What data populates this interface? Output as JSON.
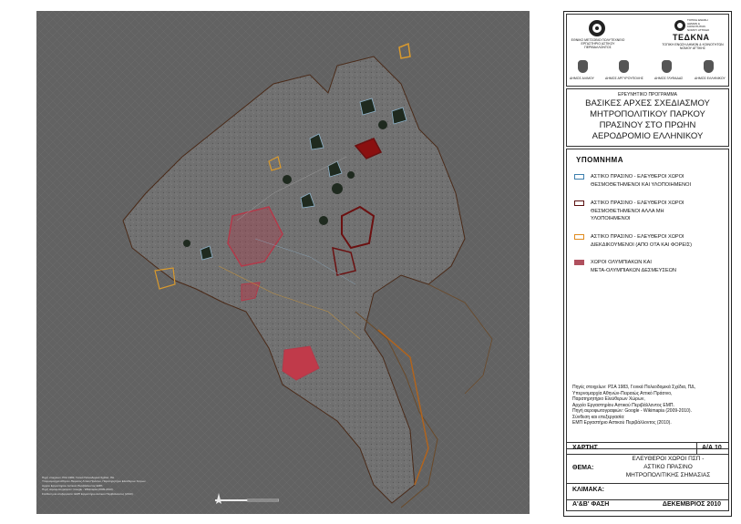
{
  "map": {
    "credits": [
      "Πηγή στοιχείων: ΡΣΑ 1983, Γενικά Πολεοδομικά Σχέδια, ΠΔ.",
      "Υπερνομαρχία Αθηνών-Πειραιώς Αττικό Πράσινο, Παρατηρητήριο Ελεύθερων Χώρων.",
      "Αρχείο Εργαστηρίου Αστικού Περιβάλλοντος ΕΜΠ.",
      "Πηγή αεροφωτογραφιών: Google - Wikimapia (2009-2010).",
      "Σύνθεση και επεξεργασία: ΕΜΠ Εργαστήριο Αστικού Περιβάλλοντος (2010)."
    ],
    "colors": {
      "background": "#5b5b5b",
      "boundary": "#4a2a18",
      "existing": "#8fb4cc",
      "planned": "#6b1010",
      "claimed": "#d99a2e",
      "olympic": "#b33a4a",
      "vegetation": "#1f2a1f"
    }
  },
  "header": {
    "org_left_line1": "ΕΘΝΙΚΟ ΜΕΤΣΟΒΙΟ ΠΟΛΥΤΕΧΝΕΙΟ",
    "org_left_line2": "ΕΡΓΑΣΤΗΡΙΟ ΑΣΤΙΚΟΥ ΠΕΡΙΒΑΛΛΟΝΤΟΣ",
    "org_right_brand": "ΤΕΔΚΝΑ",
    "org_right_lines": [
      "ΤΟΠΙΚΗ ΕΝΩΣΗ",
      "ΔΗΜΩΝ &",
      "ΚΟΙΝΟΤΗΤΩΝ",
      "ΝΟΜΟΥ ΑΤΤΙΚΗΣ"
    ],
    "org_right_caption": "ΤΟΠΙΚΗ ΕΝΩΣΗ ΔΗΜΩΝ & ΚΟΙΝΟΤΗΤΩΝ ΝΟΜΟΥ ΑΤΤΙΚΗΣ",
    "municipalities": [
      "ΔΗΜΟΣ ΑΛΙΜΟΥ",
      "ΔΗΜΟΣ ΑΡΓΥΡΟΥΠΟΛΗΣ",
      "ΔΗΜΟΣ ΓΛΥΦΑΔΑΣ",
      "ΔΗΜΟΣ ΕΛΛΗΝΙΚΟΥ"
    ]
  },
  "title": {
    "program": "ΕΡΕΥΝΗΤΙΚΟ ΠΡΟΓΡΑΜΜΑ",
    "lines": [
      "ΒΑΣΙΚΕΣ ΑΡΧΕΣ ΣΧΕΔΙΑΣΜΟΥ",
      "ΜΗΤΡΟΠΟΛΙΤΙΚΟΥ ΠΑΡΚΟΥ",
      "ΠΡΑΣΙΝΟΥ ΣΤΟ ΠΡΩΗΝ",
      "ΑΕΡΟΔΡΟΜΙΟ ΕΛΛΗΝΙΚΟΥ"
    ]
  },
  "legend": {
    "title": "ΥΠΟΜΝΗΜΑ",
    "items": [
      {
        "lines": [
          "ΑΣΤΙΚΟ ΠΡΑΣΙΝΟ - ΕΛΕΥΘΕΡΟΙ ΧΩΡΟΙ",
          "ΘΕΣΜΟΘΕΤΗΜΕΝΟΙ ΚΑΙ ΥΛΟΠΟΙΗΜΕΝΟΙ"
        ],
        "color": "#3d7fae",
        "style": "outline"
      },
      {
        "lines": [
          "ΑΣΤΙΚΟ ΠΡΑΣΙΝΟ - ΕΛΕΥΘΕΡΟΙ ΧΩΡΟΙ",
          "ΘΕΣΜΟΘΕΤΗΜΕΝΟΙ ΑΛΛΑ ΜΗ",
          "ΥΛΟΠΟΙΗΜΕΝΟΙ"
        ],
        "color": "#5a1010",
        "style": "outline"
      },
      {
        "lines": [
          "ΑΣΤΙΚΟ ΠΡΑΣΙΝΟ - ΕΛΕΥΘΕΡΟΙ ΧΩΡΟΙ",
          "ΔΙΕΚΔΙΚΟΥΜΕΝΟΙ (ΑΠΟ ΟΤΑ ΚΑΙ ΦΟΡΕΙΣ)"
        ],
        "color": "#e08a1e",
        "style": "outline"
      },
      {
        "lines": [
          "ΧΩΡΟΙ ΟΛΥΜΠΙΑΚΩΝ ΚΑΙ",
          "ΜΕΤΑ-ΟΛΥΜΠΙΑΚΩΝ ΔΕΣΜΕΥΣΕΩΝ"
        ],
        "color": "#b0505e",
        "style": "fill"
      }
    ],
    "sources": [
      "Πηγές στοιχείων: ΡΣΑ 1983, Γενικά Πολεοδομικά Σχέδια, ΠΔ,",
      "Υπερνομαρχία Αθηνών-Πειραιώς Αττικό Πράσινο,",
      "Παρατηρητήριο Ελεύθερων Χώρων,",
      "Αρχείο Εργαστηρίου Αστικού Περιβάλλοντος ΕΜΠ.",
      "Πηγή αεροφωτογραφιών: Google - Wikimapia (2009-2010).",
      "Σύνθεση και επεξεργασία:",
      "ΕΜΠ Εργαστήριο Αστικού Περιβάλλοντος (2010)."
    ]
  },
  "info": {
    "map_label": "ΧΑΡΤΗΣ",
    "map_number": "Α/Α 10",
    "theme_label": "ΘΕΜΑ:",
    "theme_lines": [
      "ΕΛΕΥΘΕΡΟΙ ΧΩΡΟΙ ΠΣΠ -",
      "ΑΣΤΙΚΟ ΠΡΑΣΙΝΟ",
      "ΜΗΤΡΟΠΟΛΙΤΙΚΗΣ ΣΗΜΑΣΙΑΣ"
    ],
    "scale_label": "ΚΛΙΜΑΚΑ:",
    "phase": "Α'&Β' ΦΑΣΗ",
    "date": "ΔΕΚΕΜΒΡΙΟΣ 2010"
  }
}
